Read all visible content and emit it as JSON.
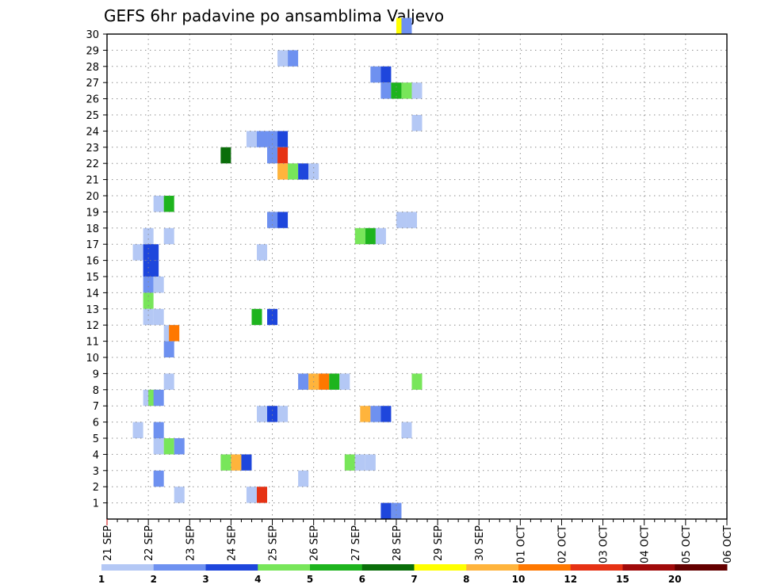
{
  "chart_data": {
    "type": "heatmap",
    "title": "GEFS 6hr padavine po ansamblima Valjevo",
    "x_ticks": [
      "21 SEP",
      "22 SEP",
      "23 SEP",
      "24 SEP",
      "25 SEP",
      "26 SEP",
      "27 SEP",
      "28 SEP",
      "29 SEP",
      "30 SEP",
      "01 OCT",
      "02 OCT",
      "03 OCT",
      "04 OCT",
      "05 OCT",
      "06 OCT"
    ],
    "y_ticks": [
      "1",
      "2",
      "3",
      "4",
      "5",
      "6",
      "7",
      "8",
      "9",
      "10",
      "11",
      "12",
      "13",
      "14",
      "15",
      "16",
      "17",
      "18",
      "19",
      "20",
      "21",
      "22",
      "23",
      "24",
      "25",
      "26",
      "27",
      "28",
      "29",
      "30"
    ],
    "x_unit": "6-hour step since 21 SEP 00 UTC",
    "grid": true,
    "colorbar": {
      "labels": [
        "1",
        "2",
        "3",
        "4",
        "5",
        "6",
        "7",
        "8",
        "10",
        "12",
        "15",
        "20"
      ],
      "colors": [
        "#b4c8f5",
        "#6e91f0",
        "#1e46dc",
        "#78e65a",
        "#1eb41e",
        "#0a6e0a",
        "#ffff00",
        "#ffb43c",
        "#ff7800",
        "#e63214",
        "#a00a0a",
        "#640000"
      ]
    },
    "cells": [
      {
        "member": 30,
        "step": 28.5,
        "bin": 6
      },
      {
        "member": 30,
        "step": 29,
        "bin": 1
      },
      {
        "member": 28,
        "step": 17,
        "bin": 0
      },
      {
        "member": 28,
        "step": 18,
        "bin": 1
      },
      {
        "member": 27,
        "step": 26,
        "bin": 1
      },
      {
        "member": 27,
        "step": 27,
        "bin": 2
      },
      {
        "member": 26,
        "step": 27,
        "bin": 1
      },
      {
        "member": 26,
        "step": 28,
        "bin": 4
      },
      {
        "member": 26,
        "step": 29,
        "bin": 3
      },
      {
        "member": 26,
        "step": 30,
        "bin": 0
      },
      {
        "member": 24,
        "step": 30,
        "bin": 0
      },
      {
        "member": 23,
        "step": 14,
        "bin": 0
      },
      {
        "member": 23,
        "step": 15,
        "bin": 1
      },
      {
        "member": 23,
        "step": 16,
        "bin": 1
      },
      {
        "member": 23,
        "step": 17,
        "bin": 2
      },
      {
        "member": 22,
        "step": 11.5,
        "bin": 5
      },
      {
        "member": 22,
        "step": 16,
        "bin": 1
      },
      {
        "member": 22,
        "step": 17,
        "bin": 9
      },
      {
        "member": 21,
        "step": 17,
        "bin": 7
      },
      {
        "member": 21,
        "step": 18,
        "bin": 3
      },
      {
        "member": 21,
        "step": 19,
        "bin": 2
      },
      {
        "member": 21,
        "step": 20,
        "bin": 0
      },
      {
        "member": 19,
        "step": 5,
        "bin": 0
      },
      {
        "member": 19,
        "step": 6,
        "bin": 4
      },
      {
        "member": 18,
        "step": 16,
        "bin": 1
      },
      {
        "member": 18,
        "step": 17,
        "bin": 2
      },
      {
        "member": 18,
        "step": 28.5,
        "bin": 0
      },
      {
        "member": 18,
        "step": 29.5,
        "bin": 0
      },
      {
        "member": 17,
        "step": 4,
        "bin": 0
      },
      {
        "member": 17,
        "step": 6,
        "bin": 0
      },
      {
        "member": 17,
        "step": 24.5,
        "bin": 3
      },
      {
        "member": 17,
        "step": 25.5,
        "bin": 4
      },
      {
        "member": 17,
        "step": 26.5,
        "bin": 0
      },
      {
        "member": 16,
        "step": 3,
        "bin": 0
      },
      {
        "member": 16,
        "step": 4,
        "bin": 2
      },
      {
        "member": 16,
        "step": 4.5,
        "bin": 2
      },
      {
        "member": 16,
        "step": 15,
        "bin": 0
      },
      {
        "member": 15,
        "step": 4,
        "bin": 2
      },
      {
        "member": 15,
        "step": 4.5,
        "bin": 2
      },
      {
        "member": 14,
        "step": 4,
        "bin": 1
      },
      {
        "member": 14,
        "step": 5,
        "bin": 0
      },
      {
        "member": 13,
        "step": 4,
        "bin": 3
      },
      {
        "member": 12,
        "step": 4,
        "bin": 0
      },
      {
        "member": 12,
        "step": 5,
        "bin": 0
      },
      {
        "member": 12,
        "step": 14.5,
        "bin": 4
      },
      {
        "member": 12,
        "step": 16,
        "bin": 2
      },
      {
        "member": 11,
        "step": 6,
        "bin": 0
      },
      {
        "member": 11,
        "step": 6.5,
        "bin": 8
      },
      {
        "member": 10,
        "step": 6,
        "bin": 1
      },
      {
        "member": 8,
        "step": 6,
        "bin": 0
      },
      {
        "member": 8,
        "step": 19,
        "bin": 1
      },
      {
        "member": 8,
        "step": 20,
        "bin": 7
      },
      {
        "member": 8,
        "step": 21,
        "bin": 8
      },
      {
        "member": 8,
        "step": 22,
        "bin": 4
      },
      {
        "member": 8,
        "step": 23,
        "bin": 0
      },
      {
        "member": 8,
        "step": 30,
        "bin": 3
      },
      {
        "member": 7,
        "step": 4,
        "bin": 0
      },
      {
        "member": 7,
        "step": 4.5,
        "bin": 3
      },
      {
        "member": 7,
        "step": 5,
        "bin": 1
      },
      {
        "member": 6,
        "step": 15,
        "bin": 0
      },
      {
        "member": 6,
        "step": 16,
        "bin": 2
      },
      {
        "member": 6,
        "step": 17,
        "bin": 0
      },
      {
        "member": 6,
        "step": 25,
        "bin": 7
      },
      {
        "member": 6,
        "step": 26,
        "bin": 1
      },
      {
        "member": 6,
        "step": 27,
        "bin": 2
      },
      {
        "member": 5,
        "step": 3,
        "bin": 0
      },
      {
        "member": 5,
        "step": 5,
        "bin": 1
      },
      {
        "member": 5,
        "step": 29,
        "bin": 0
      },
      {
        "member": 4,
        "step": 5,
        "bin": 0
      },
      {
        "member": 4,
        "step": 6,
        "bin": 3
      },
      {
        "member": 4,
        "step": 7,
        "bin": 1
      },
      {
        "member": 3,
        "step": 11.5,
        "bin": 3
      },
      {
        "member": 3,
        "step": 12.5,
        "bin": 7
      },
      {
        "member": 3,
        "step": 13.5,
        "bin": 2
      },
      {
        "member": 3,
        "step": 23.5,
        "bin": 3
      },
      {
        "member": 3,
        "step": 24.5,
        "bin": 0
      },
      {
        "member": 3,
        "step": 25.5,
        "bin": 0
      },
      {
        "member": 2,
        "step": 5,
        "bin": 1
      },
      {
        "member": 2,
        "step": 19,
        "bin": 0
      },
      {
        "member": 1,
        "step": 7,
        "bin": 0
      },
      {
        "member": 1,
        "step": 14,
        "bin": 0
      },
      {
        "member": 1,
        "step": 15,
        "bin": 9
      },
      {
        "member": 0,
        "step": 27,
        "bin": 2
      },
      {
        "member": 0,
        "step": 28,
        "bin": 1
      }
    ]
  }
}
